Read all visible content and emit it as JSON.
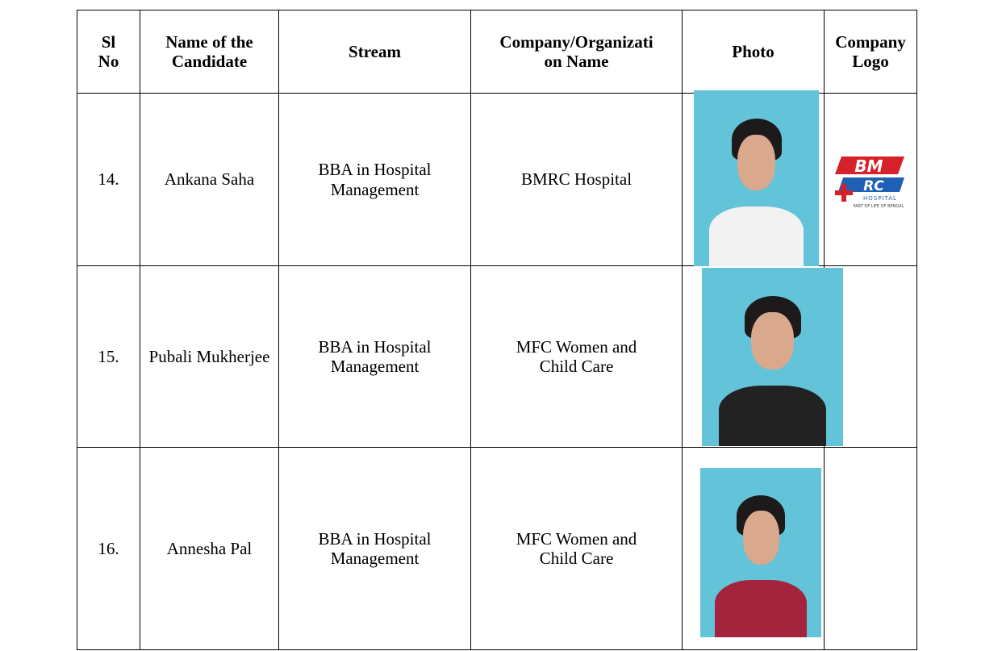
{
  "table": {
    "headers": [
      "Sl No",
      "Name of the Candidate",
      "Stream",
      "Company/Organization Name",
      "Photo",
      "Company Logo"
    ],
    "rows": [
      [
        "14.",
        "Ankana Saha",
        "BBA in Hospital Management",
        "BMRC Hospital"
      ],
      [
        "15.",
        "Pubali Mukherjee",
        "BBA in Hospital Management",
        "MFC Women and Child Care"
      ],
      [
        "16.",
        "Annesha Pal",
        "BBA in Hospital Management",
        "MFC Women and Child Care"
      ]
    ]
  },
  "logo": {
    "top": "BM",
    "bottom": "RC",
    "caption": "HOSPITAL",
    "tagline": "PART OF LIFE OF BENGAL"
  }
}
